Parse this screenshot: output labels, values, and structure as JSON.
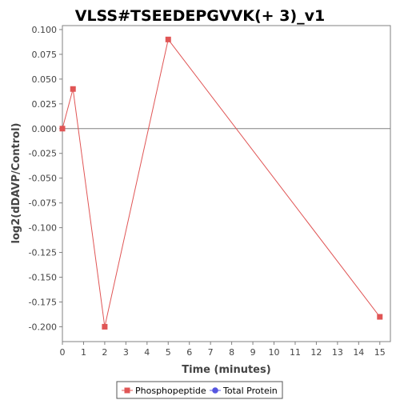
{
  "chart_data": {
    "type": "line",
    "title": "VLSS#TSEEDEPGVVK(+ 3)_v1",
    "xlabel": "Time (minutes)",
    "ylabel": "log2(dDAVP/Control)",
    "xlim": [
      0,
      15.5
    ],
    "ylim": [
      -0.215,
      0.104
    ],
    "x_ticks": [
      0,
      1,
      2,
      3,
      4,
      5,
      6,
      7,
      8,
      9,
      10,
      11,
      12,
      13,
      14,
      15
    ],
    "y_ticks": [
      0.1,
      0.075,
      0.05,
      0.025,
      0.0,
      -0.025,
      -0.05,
      -0.075,
      -0.1,
      -0.125,
      -0.15,
      -0.175,
      -0.2
    ],
    "y_tick_labels": [
      "0.100",
      "0.075",
      "0.050",
      "0.025",
      "0.000",
      "-0.025",
      "-0.050",
      "-0.075",
      "-0.100",
      "-0.125",
      "-0.150",
      "-0.175",
      "-0.200"
    ],
    "zero_line": 0,
    "grid": false,
    "legend_position": "bottom",
    "series": [
      {
        "name": "Phosphopeptide",
        "color": "#e05555",
        "marker": "square",
        "x": [
          0,
          0.5,
          2,
          5,
          15
        ],
        "y": [
          0.0,
          0.04,
          -0.2,
          0.09,
          -0.19
        ]
      }
    ],
    "legend": [
      {
        "name": "Phosphopeptide",
        "color": "#e05555",
        "marker": "square"
      },
      {
        "name": "Total Protein",
        "color": "#5555e0",
        "marker": "circle"
      }
    ]
  }
}
